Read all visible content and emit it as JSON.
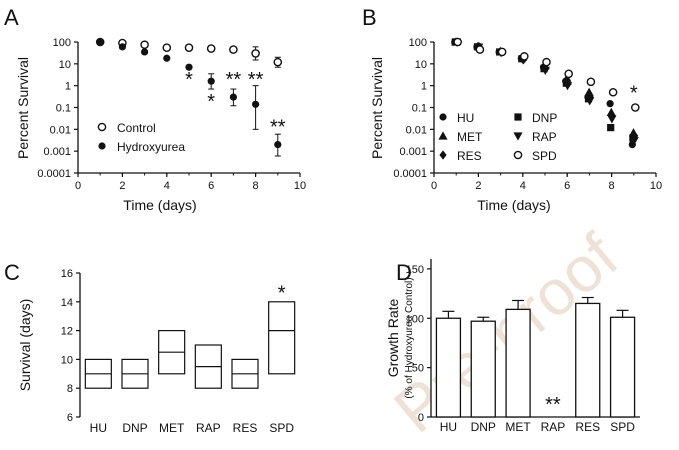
{
  "watermark": "Pre-proof",
  "chart_data": [
    {
      "panel": "A",
      "type": "scatter",
      "xlabel": "Time (days)",
      "ylabel": "Percent Survival",
      "xlim": [
        0,
        10
      ],
      "ylim": [
        0.0001,
        100
      ],
      "yscale": "log",
      "xticks": [
        "0",
        "2",
        "4",
        "6",
        "8",
        "10"
      ],
      "yticks": [
        "0.0001",
        "0.001",
        "0.01",
        "0.1",
        "1",
        "10",
        "100"
      ],
      "legend_position": "bottom-left",
      "series": [
        {
          "name": "Control",
          "marker": "open-circle",
          "points": [
            {
              "x": 1,
              "y": 100
            },
            {
              "x": 2,
              "y": 90
            },
            {
              "x": 3,
              "y": 75
            },
            {
              "x": 4,
              "y": 55
            },
            {
              "x": 5,
              "y": 55
            },
            {
              "x": 6,
              "y": 50
            },
            {
              "x": 7,
              "y": 45
            },
            {
              "x": 8,
              "y": 30,
              "lo": 15,
              "hi": 60
            },
            {
              "x": 9,
              "y": 12,
              "lo": 7,
              "hi": 20
            }
          ]
        },
        {
          "name": "Hydroxyurea",
          "marker": "filled-circle",
          "points": [
            {
              "x": 1,
              "y": 100
            },
            {
              "x": 2,
              "y": 60
            },
            {
              "x": 3,
              "y": 35
            },
            {
              "x": 4,
              "y": 18
            },
            {
              "x": 5,
              "y": 7
            },
            {
              "x": 6,
              "y": 1.6,
              "lo": 0.7,
              "hi": 3.5,
              "sig": "*"
            },
            {
              "x": 7,
              "y": 0.3,
              "lo": 0.12,
              "hi": 0.7,
              "sig": "**"
            },
            {
              "x": 8,
              "y": 0.14,
              "lo": 0.01,
              "hi": 1,
              "sig": "**"
            },
            {
              "x": 9,
              "y": 0.002,
              "lo": 0.0006,
              "hi": 0.006,
              "sig": "**"
            }
          ]
        }
      ],
      "annotations": [
        {
          "text": "*",
          "x": 5,
          "y": 2.5
        },
        {
          "text": "*",
          "x": 6,
          "y": 0.25
        },
        {
          "text": "**",
          "x": 7,
          "y": 2.5
        },
        {
          "text": "**",
          "x": 8,
          "y": 2.5
        },
        {
          "text": "**",
          "x": 9,
          "y": 0.017
        }
      ]
    },
    {
      "panel": "B",
      "type": "scatter",
      "xlabel": "Time (days)",
      "ylabel": "Percent Survival",
      "xlim": [
        0,
        10
      ],
      "ylim": [
        0.0001,
        100
      ],
      "yscale": "log",
      "xticks": [
        "0",
        "2",
        "4",
        "6",
        "8",
        "10"
      ],
      "yticks": [
        "0.0001",
        "0.001",
        "0.01",
        "0.1",
        "1",
        "10",
        "100"
      ],
      "legend_position": "bottom-left",
      "x": [
        1,
        2,
        3,
        4,
        5,
        6,
        7,
        8,
        9
      ],
      "series": [
        {
          "name": "HU",
          "marker": "filled-circle",
          "values": [
            100,
            60,
            35,
            18,
            7,
            1.6,
            0.3,
            0.15,
            0.002
          ]
        },
        {
          "name": "DNP",
          "marker": "filled-square",
          "values": [
            100,
            60,
            35,
            17,
            6,
            1.3,
            0.25,
            0.012,
            0.004
          ]
        },
        {
          "name": "MET",
          "marker": "filled-triangle-up",
          "values": [
            100,
            65,
            38,
            20,
            8,
            2.2,
            0.5,
            0.06,
            0.007
          ]
        },
        {
          "name": "RAP",
          "marker": "filled-triangle-down",
          "values": [
            100,
            58,
            33,
            15,
            5,
            1.0,
            0.2,
            0.03,
            0.003
          ]
        },
        {
          "name": "RES",
          "marker": "filled-diamond",
          "values": [
            100,
            60,
            34,
            16,
            6,
            1.2,
            0.3,
            0.04,
            0.005
          ]
        },
        {
          "name": "SPD",
          "marker": "open-circle",
          "values": [
            100,
            45,
            35,
            22,
            12,
            3.5,
            1.5,
            0.5,
            0.1
          ]
        }
      ],
      "annotations": [
        {
          "text": "*",
          "x": 9,
          "y": 0.6
        }
      ]
    },
    {
      "panel": "C",
      "type": "box",
      "ylabel": "Survival (days)",
      "ylim": [
        6,
        16
      ],
      "yticks": [
        "6",
        "8",
        "10",
        "12",
        "14",
        "16"
      ],
      "categories": [
        "HU",
        "DNP",
        "MET",
        "RAP",
        "RES",
        "SPD"
      ],
      "boxes": [
        {
          "min": 8,
          "median": 9,
          "max": 10
        },
        {
          "min": 8,
          "median": 9,
          "max": 10
        },
        {
          "min": 9,
          "median": 10.5,
          "max": 12
        },
        {
          "min": 8,
          "median": 9.5,
          "max": 11
        },
        {
          "min": 8,
          "median": 9,
          "max": 10
        },
        {
          "min": 9,
          "median": 12,
          "max": 14
        }
      ],
      "annotations": [
        {
          "text": "*",
          "category": "SPD",
          "y": 14.8
        }
      ]
    },
    {
      "panel": "D",
      "type": "bar",
      "ylabel": "Growth Rate",
      "ylabel_sub": "(% of Hydroxyurea Control)",
      "ylim": [
        0,
        160
      ],
      "yticks": [
        "0",
        "50",
        "100",
        "150"
      ],
      "categories": [
        "HU",
        "DNP",
        "MET",
        "RAP",
        "RES",
        "SPD"
      ],
      "values": [
        100,
        97,
        109,
        null,
        115,
        101
      ],
      "errors": [
        7,
        4,
        9,
        null,
        6,
        7
      ],
      "annotations": [
        {
          "text": "**",
          "category": "RAP",
          "y": 15
        }
      ]
    }
  ]
}
